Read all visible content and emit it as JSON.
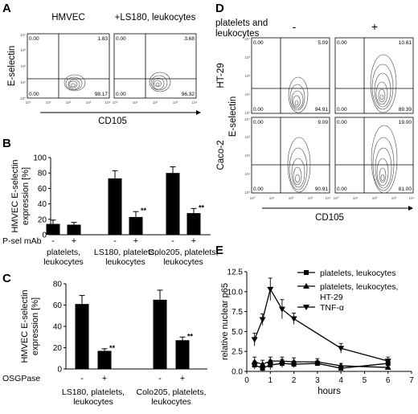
{
  "panels": {
    "A": {
      "letter": "A",
      "titles": [
        "HMVEC",
        "+LS180, leukocytes"
      ],
      "ylabel": "E-selectin",
      "xlabel": "CD105",
      "ticks": [
        "10⁰",
        "10¹",
        "10²",
        "10³",
        "10⁴"
      ],
      "plots": [
        {
          "tl": "0.00",
          "tr": "1.83",
          "bl": "0.00",
          "br": "98.17"
        },
        {
          "tl": "0.00",
          "tr": "3.68",
          "bl": "0.00",
          "br": "96.32"
        }
      ]
    },
    "D": {
      "letter": "D",
      "header": [
        "platelets and",
        "leukocytes"
      ],
      "conditions": [
        "-",
        "+"
      ],
      "rows": [
        "HT-29",
        "Caco-2"
      ],
      "ylabel": "E-selectin",
      "xlabel": "CD105",
      "ticks": [
        "10⁰",
        "10¹",
        "10²",
        "10³",
        "10⁴"
      ],
      "plots": [
        {
          "tl": "0.00",
          "tr": "5.09",
          "bl": "0.00",
          "br": "94.91"
        },
        {
          "tl": "0.00",
          "tr": "10.61",
          "bl": "0.00",
          "br": "89.39"
        },
        {
          "tl": "0.00",
          "tr": "9.09",
          "bl": "0.00",
          "br": "90.91"
        },
        {
          "tl": "0.00",
          "tr": "19.00",
          "bl": "0.00",
          "br": "81.00"
        }
      ]
    },
    "B": {
      "letter": "B"
    },
    "C": {
      "letter": "C"
    },
    "E": {
      "letter": "E"
    }
  },
  "chart_data": [
    {
      "panel": "B",
      "type": "bar",
      "ylabel": "HMVEC E-selectin expression [%]",
      "ylim": [
        0,
        100
      ],
      "yticks": [
        0,
        20,
        40,
        60,
        80,
        100
      ],
      "row_label": "P-sel mAb",
      "groups": [
        {
          "label": "platelets, leukocytes",
          "bars": [
            {
              "tick": "-",
              "value": 14,
              "err": 5
            },
            {
              "tick": "+",
              "value": 13,
              "err": 3
            }
          ]
        },
        {
          "label": "LS180, platelets, leukocytes",
          "bars": [
            {
              "tick": "-",
              "value": 73,
              "err": 10
            },
            {
              "tick": "+",
              "value": 23,
              "err": 7,
              "mark": "**"
            }
          ]
        },
        {
          "label": "Colo205, platelets, leukocytes",
          "bars": [
            {
              "tick": "-",
              "value": 80,
              "err": 8
            },
            {
              "tick": "+",
              "value": 28,
              "err": 6,
              "mark": "**"
            }
          ]
        }
      ]
    },
    {
      "panel": "C",
      "type": "bar",
      "ylabel": "HMVEC E-selectin expression [%]",
      "ylim": [
        0,
        80
      ],
      "yticks": [
        0,
        20,
        40,
        60,
        80
      ],
      "row_label": "OSGPase",
      "groups": [
        {
          "label": "LS180, platelets, leukocytes",
          "bars": [
            {
              "tick": "-",
              "value": 61,
              "err": 8
            },
            {
              "tick": "+",
              "value": 17,
              "err": 2,
              "mark": "**"
            }
          ]
        },
        {
          "label": "Colo205, platelets, leukocytes",
          "bars": [
            {
              "tick": "-",
              "value": 65,
              "err": 9
            },
            {
              "tick": "+",
              "value": 27,
              "err": 3,
              "mark": "**"
            }
          ]
        }
      ]
    },
    {
      "panel": "E",
      "type": "line",
      "xlabel": "hours",
      "ylabel": "relative nuclear p65",
      "xlim": [
        0,
        7
      ],
      "ylim": [
        0,
        12.5
      ],
      "xticks": [
        0,
        1,
        2,
        3,
        4,
        5,
        6,
        7
      ],
      "yticks": [
        0.0,
        2.5,
        5.0,
        7.5,
        10.0,
        12.5
      ],
      "ytick_labels": [
        "0.0",
        "2.5",
        "5.0",
        "7.5",
        "10.0",
        "12.5"
      ],
      "legend_position": "top-right",
      "series": [
        {
          "name": "platelets, leukocytes",
          "marker": "square",
          "x": [
            0.33,
            0.67,
            1,
            1.5,
            2,
            3,
            4,
            6
          ],
          "y": [
            0.8,
            0.4,
            0.8,
            1.0,
            0.9,
            1.0,
            0.4,
            1.0
          ],
          "err": [
            0.5,
            0.4,
            0.6,
            0.5,
            0.4,
            0.3,
            0.3,
            0.4
          ]
        },
        {
          "name": "platelets, leukocytes, HT-29",
          "marker": "triangle-up",
          "x": [
            0.33,
            0.67,
            1,
            1.5,
            2,
            3,
            4,
            6
          ],
          "y": [
            1.2,
            0.9,
            1.3,
            1.3,
            1.2,
            1.2,
            0.7,
            0.5
          ],
          "err": [
            0.6,
            0.5,
            0.5,
            0.5,
            0.5,
            0.4,
            0.3,
            0.3
          ]
        },
        {
          "name": "TNF-α",
          "marker": "triangle-down",
          "x": [
            0.33,
            0.67,
            1,
            1.5,
            2,
            4,
            6
          ],
          "y": [
            4.0,
            6.5,
            10.3,
            7.8,
            6.6,
            2.9,
            1.3
          ],
          "err": [
            0.8,
            0.7,
            1.4,
            1.2,
            0.7,
            0.6,
            0.5
          ]
        }
      ]
    }
  ]
}
